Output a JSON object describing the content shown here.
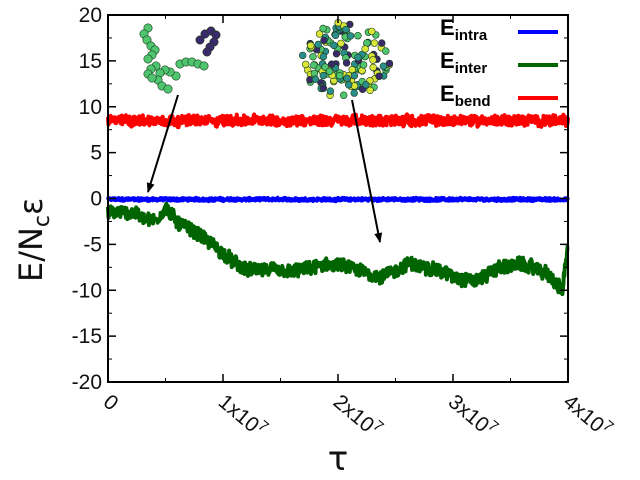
{
  "chart_data": {
    "type": "line",
    "xlabel": "τ",
    "ylabel_main": "E/N",
    "ylabel_sub": "c",
    "ylabel_tail": "ε",
    "xlim": [
      0,
      40000000
    ],
    "ylim": [
      -20,
      20
    ],
    "x_ticks": [
      {
        "value": 0,
        "label": "0"
      },
      {
        "value": 10000000,
        "label": "1x10",
        "exp": "7"
      },
      {
        "value": 20000000,
        "label": "2x10",
        "exp": "7"
      },
      {
        "value": 30000000,
        "label": "3x10",
        "exp": "7"
      },
      {
        "value": 40000000,
        "label": "4x10",
        "exp": "7"
      }
    ],
    "y_ticks": [
      20,
      15,
      10,
      5,
      0,
      -5,
      -10,
      -15,
      -20
    ],
    "grid": false,
    "legend_position": "top-right",
    "series": [
      {
        "name": "E",
        "sub": "intra",
        "color": "#0000ff",
        "noise": 0.3,
        "x": [
          0,
          40000000
        ],
        "y": [
          -0.1,
          -0.1
        ]
      },
      {
        "name": "E",
        "sub": "inter",
        "color": "#006400",
        "noise": 1.4,
        "x": [
          0,
          2000000,
          4000000,
          5000000,
          6000000,
          8000000,
          9500000,
          11000000,
          12000000,
          14000000,
          16000000,
          18000000,
          20000000,
          22000000,
          24000000,
          26000000,
          28000000,
          30000000,
          32000000,
          34000000,
          36000000,
          38000000,
          39500000,
          40000000
        ],
        "y": [
          -1.5,
          -1.5,
          -2.5,
          -1.0,
          -2.5,
          -4.0,
          -5.5,
          -7.0,
          -7.8,
          -7.8,
          -8.0,
          -7.5,
          -7.2,
          -8.0,
          -8.5,
          -7.2,
          -7.5,
          -8.5,
          -9.0,
          -7.5,
          -7.2,
          -8.0,
          -10.0,
          -5.0
        ]
      },
      {
        "name": "E",
        "sub": "bend",
        "color": "#ff0000",
        "noise": 1.1,
        "x": [
          0,
          40000000
        ],
        "y": [
          8.5,
          8.5
        ]
      }
    ]
  },
  "colors": {
    "axis": "#000000",
    "arrow": "#000000",
    "bead_green": "#4fc56f",
    "bead_navy": "#3b2a6b",
    "bead_yellow": "#d9e638",
    "bead_teal": "#2a8f8a"
  }
}
